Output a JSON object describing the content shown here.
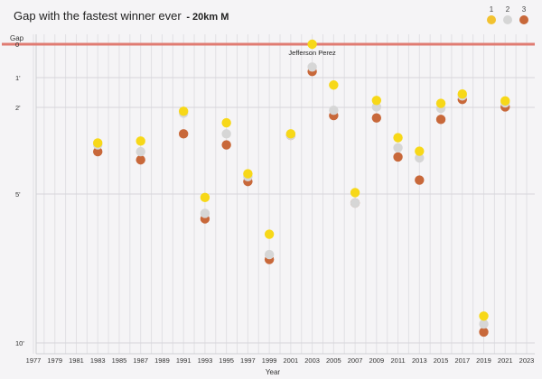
{
  "header": {
    "title": "Gap with the fastest winner ever",
    "subtitle": "- 20km M"
  },
  "legend": [
    {
      "label": "1",
      "color": "#f7d818"
    },
    {
      "label": "2",
      "color": "#d6d6d6"
    },
    {
      "label": "3",
      "color": "#c8683a"
    }
  ],
  "chart_data": {
    "type": "scatter",
    "xlabel": "Year",
    "ylabel": "Gap",
    "x_ticks": [
      "1977",
      "1979",
      "1981",
      "1983",
      "1985",
      "1987",
      "1989",
      "1991",
      "1993",
      "1995",
      "1997",
      "1999",
      "2001",
      "2003",
      "2005",
      "2007",
      "2009",
      "2011",
      "2013",
      "2015",
      "2017",
      "2019",
      "2021",
      "2023"
    ],
    "y_ticks": [
      {
        "label": "0",
        "value": 0
      },
      {
        "label": "1'",
        "value": 60
      },
      {
        "label": "2'",
        "value": 120
      },
      {
        "label": "5'",
        "value": 300
      },
      {
        "label": "10'",
        "value": 600
      }
    ],
    "ylim": [
      0,
      600
    ],
    "reference_line": {
      "label": "0",
      "value": 0,
      "color": "#e07b72"
    },
    "annotation": {
      "text": "Jefferson Perez",
      "year": 2003
    },
    "grid": true,
    "legend_position": "top-right",
    "series": [
      {
        "name": "1",
        "color": "#f7d818",
        "points": [
          [
            1983,
            194
          ],
          [
            1987,
            190
          ],
          [
            1991,
            128
          ],
          [
            1993,
            307
          ],
          [
            1995,
            152
          ],
          [
            1997,
            258
          ],
          [
            1999,
            381
          ],
          [
            2001,
            175
          ],
          [
            2003,
            0
          ],
          [
            2005,
            75
          ],
          [
            2007,
            297
          ],
          [
            2009,
            106
          ],
          [
            2011,
            183
          ],
          [
            2013,
            211
          ],
          [
            2015,
            112
          ],
          [
            2017,
            93
          ],
          [
            2019,
            546
          ],
          [
            2021,
            107
          ]
        ]
      },
      {
        "name": "2",
        "color": "#d6d6d6",
        "points": [
          [
            1983,
            198
          ],
          [
            1987,
            212
          ],
          [
            1991,
            132
          ],
          [
            1993,
            339
          ],
          [
            1995,
            175
          ],
          [
            1997,
            264
          ],
          [
            1999,
            422
          ],
          [
            2001,
            178
          ],
          [
            2003,
            41
          ],
          [
            2005,
            126
          ],
          [
            2007,
            318
          ],
          [
            2009,
            119
          ],
          [
            2011,
            204
          ],
          [
            2013,
            225
          ],
          [
            2015,
            122
          ],
          [
            2017,
            97
          ],
          [
            2019,
            562
          ],
          [
            2021,
            111
          ]
        ]
      },
      {
        "name": "3",
        "color": "#c8683a",
        "points": [
          [
            1983,
            212
          ],
          [
            1987,
            229
          ],
          [
            1991,
            175
          ],
          [
            1993,
            350
          ],
          [
            1995,
            198
          ],
          [
            1997,
            274
          ],
          [
            1999,
            432
          ],
          [
            2001,
            178
          ],
          [
            2003,
            49
          ],
          [
            2005,
            137
          ],
          [
            2007,
            318
          ],
          [
            2009,
            142
          ],
          [
            2011,
            223
          ],
          [
            2013,
            271
          ],
          [
            2015,
            145
          ],
          [
            2017,
            104
          ],
          [
            2019,
            578
          ],
          [
            2021,
            119
          ]
        ]
      }
    ]
  }
}
